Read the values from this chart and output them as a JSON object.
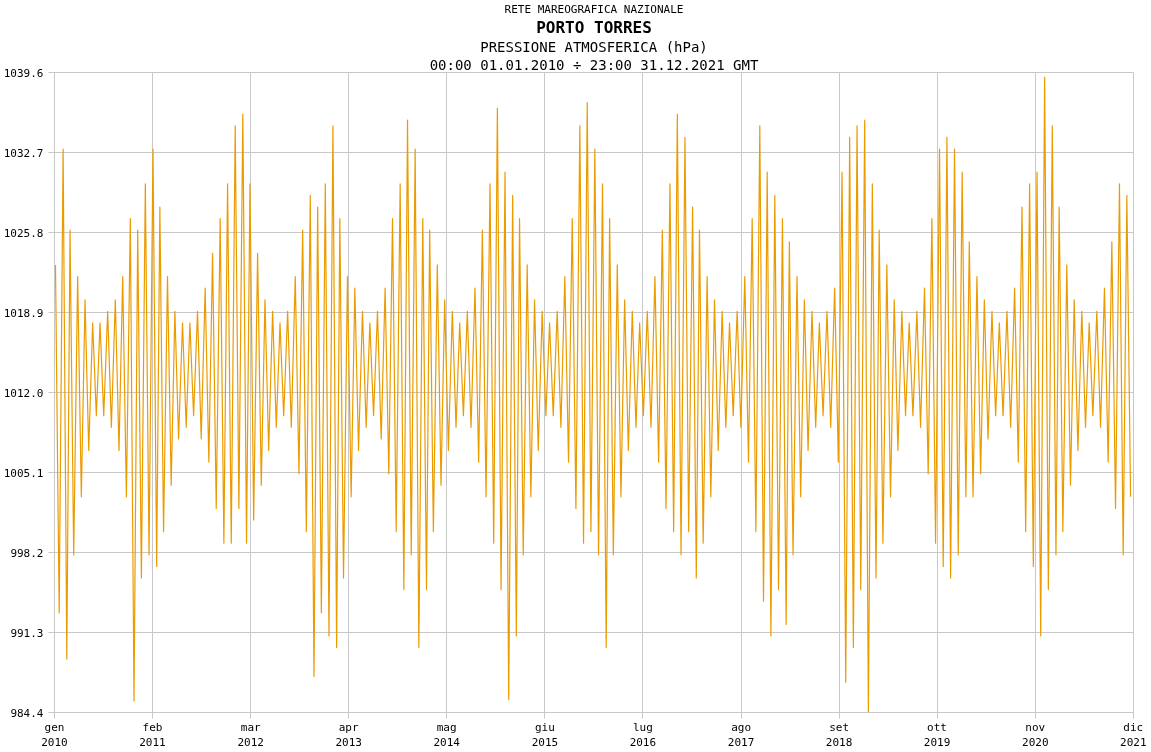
{
  "chart_data": {
    "type": "line",
    "title": "PORTO TORRES",
    "subtitle": "PRESSIONE ATMOSFERICA (hPa)",
    "annotations": [
      "RETE MAREOGRAFICA NAZIONALE",
      "00:00 01.01.2010 ÷ 23:00 31.12.2021 GMT"
    ],
    "xlim": [
      "2010-01-01",
      "2021-12-31T23:00"
    ],
    "xticks": [
      {
        "value": "2010-01-01",
        "label": "gen\n2010"
      },
      {
        "value": "2011-02-03",
        "label": "feb\n2011"
      },
      {
        "value": "2012-03-08",
        "label": "mar\n2012"
      },
      {
        "value": "2013-04-10",
        "label": "apr\n2013"
      },
      {
        "value": "2014-05-13",
        "label": "mag\n2014"
      },
      {
        "value": "2015-06-16",
        "label": "giu\n2015"
      },
      {
        "value": "2016-07-18",
        "label": "lug\n2016"
      },
      {
        "value": "2017-08-21",
        "label": "ago\n2017"
      },
      {
        "value": "2018-09-23",
        "label": "set\n2018"
      },
      {
        "value": "2019-10-26",
        "label": "ott\n2019"
      },
      {
        "value": "2020-11-28",
        "label": "nov\n2020"
      },
      {
        "value": "2021-12-31",
        "label": "dic\n2021"
      }
    ],
    "ylim": [
      984.4,
      1039.6
    ],
    "yticks": [
      984.4,
      991.3,
      998.2,
      1005.1,
      {
        "value": 1012,
        "label": "1012.0"
      },
      1018.9,
      1025.8,
      1032.7,
      1039.6
    ],
    "grid": true,
    "marker": "none",
    "line_style": "solid",
    "series": [
      {
        "color": "#eb9b00",
        "x": [
          "2010-01-05",
          "2010-01-20",
          "2010-02-05",
          "2010-02-20",
          "2010-03-05",
          "2010-03-20",
          "2010-04-05",
          "2010-04-20",
          "2010-05-05",
          "2010-05-20",
          "2010-06-05",
          "2010-06-20",
          "2010-07-05",
          "2010-07-20",
          "2010-08-05",
          "2010-08-20",
          "2010-09-05",
          "2010-09-20",
          "2010-10-05",
          "2010-10-20",
          "2010-11-05",
          "2010-11-20",
          "2010-12-05",
          "2010-12-20",
          "2011-01-05",
          "2011-01-20",
          "2011-02-05",
          "2011-02-20",
          "2011-03-05",
          "2011-03-20",
          "2011-04-05",
          "2011-04-20",
          "2011-05-05",
          "2011-05-20",
          "2011-06-05",
          "2011-06-20",
          "2011-07-05",
          "2011-07-20",
          "2011-08-05",
          "2011-08-20",
          "2011-09-05",
          "2011-09-20",
          "2011-10-05",
          "2011-10-20",
          "2011-11-05",
          "2011-11-20",
          "2011-12-05",
          "2011-12-20",
          "2012-01-05",
          "2012-01-20",
          "2012-02-05",
          "2012-02-20",
          "2012-03-05",
          "2012-03-20",
          "2012-04-05",
          "2012-04-20",
          "2012-05-05",
          "2012-05-20",
          "2012-06-05",
          "2012-06-20",
          "2012-07-05",
          "2012-07-20",
          "2012-08-05",
          "2012-08-20",
          "2012-09-05",
          "2012-09-20",
          "2012-10-05",
          "2012-10-20",
          "2012-11-05",
          "2012-11-20",
          "2012-12-05",
          "2012-12-20",
          "2013-01-05",
          "2013-01-20",
          "2013-02-05",
          "2013-02-20",
          "2013-03-05",
          "2013-03-20",
          "2013-04-05",
          "2013-04-20",
          "2013-05-05",
          "2013-05-20",
          "2013-06-05",
          "2013-06-20",
          "2013-07-05",
          "2013-07-20",
          "2013-08-05",
          "2013-08-20",
          "2013-09-05",
          "2013-09-20",
          "2013-10-05",
          "2013-10-20",
          "2013-11-05",
          "2013-11-20",
          "2013-12-05",
          "2013-12-20",
          "2014-01-05",
          "2014-01-20",
          "2014-02-05",
          "2014-02-20",
          "2014-03-05",
          "2014-03-20",
          "2014-04-05",
          "2014-04-20",
          "2014-05-05",
          "2014-05-20",
          "2014-06-05",
          "2014-06-20",
          "2014-07-05",
          "2014-07-20",
          "2014-08-05",
          "2014-08-20",
          "2014-09-05",
          "2014-09-20",
          "2014-10-05",
          "2014-10-20",
          "2014-11-05",
          "2014-11-20",
          "2014-12-05",
          "2014-12-20",
          "2015-01-05",
          "2015-01-20",
          "2015-02-05",
          "2015-02-20",
          "2015-03-05",
          "2015-03-20",
          "2015-04-05",
          "2015-04-20",
          "2015-05-05",
          "2015-05-20",
          "2015-06-05",
          "2015-06-20",
          "2015-07-05",
          "2015-07-20",
          "2015-08-05",
          "2015-08-20",
          "2015-09-05",
          "2015-09-20",
          "2015-10-05",
          "2015-10-20",
          "2015-11-05",
          "2015-11-20",
          "2015-12-05",
          "2015-12-20",
          "2016-01-05",
          "2016-01-20",
          "2016-02-05",
          "2016-02-20",
          "2016-03-05",
          "2016-03-20",
          "2016-04-05",
          "2016-04-20",
          "2016-05-05",
          "2016-05-20",
          "2016-06-05",
          "2016-06-20",
          "2016-07-05",
          "2016-07-20",
          "2016-08-05",
          "2016-08-20",
          "2016-09-05",
          "2016-09-20",
          "2016-10-05",
          "2016-10-20",
          "2016-11-05",
          "2016-11-20",
          "2016-12-05",
          "2016-12-20",
          "2017-01-05",
          "2017-01-20",
          "2017-02-05",
          "2017-02-20",
          "2017-03-05",
          "2017-03-20",
          "2017-04-05",
          "2017-04-20",
          "2017-05-05",
          "2017-05-20",
          "2017-06-05",
          "2017-06-20",
          "2017-07-05",
          "2017-07-20",
          "2017-08-05",
          "2017-08-20",
          "2017-09-05",
          "2017-09-20",
          "2017-10-05",
          "2017-10-20",
          "2017-11-05",
          "2017-11-20",
          "2017-12-05",
          "2017-12-20",
          "2018-01-05",
          "2018-01-20",
          "2018-02-05",
          "2018-02-20",
          "2018-03-05",
          "2018-03-20",
          "2018-04-05",
          "2018-04-20",
          "2018-05-05",
          "2018-05-20",
          "2018-06-05",
          "2018-06-20",
          "2018-07-05",
          "2018-07-20",
          "2018-08-05",
          "2018-08-20",
          "2018-09-05",
          "2018-09-20",
          "2018-10-05",
          "2018-10-20",
          "2018-11-05",
          "2018-11-20",
          "2018-12-05",
          "2018-12-20",
          "2019-01-05",
          "2019-01-20",
          "2019-02-05",
          "2019-02-20",
          "2019-03-05",
          "2019-03-20",
          "2019-04-05",
          "2019-04-20",
          "2019-05-05",
          "2019-05-20",
          "2019-06-05",
          "2019-06-20",
          "2019-07-05",
          "2019-07-20",
          "2019-08-05",
          "2019-08-20",
          "2019-09-05",
          "2019-09-20",
          "2019-10-05",
          "2019-10-20",
          "2019-11-05",
          "2019-11-20",
          "2019-12-05",
          "2019-12-20",
          "2020-01-05",
          "2020-01-20",
          "2020-02-05",
          "2020-02-20",
          "2020-03-05",
          "2020-03-20",
          "2020-04-05",
          "2020-04-20",
          "2020-05-05",
          "2020-05-20",
          "2020-06-05",
          "2020-06-20",
          "2020-07-05",
          "2020-07-20",
          "2020-08-05",
          "2020-08-20",
          "2020-09-05",
          "2020-09-20",
          "2020-10-05",
          "2020-10-20",
          "2020-11-05",
          "2020-11-20",
          "2020-12-05",
          "2020-12-20",
          "2021-01-05",
          "2021-01-20",
          "2021-02-05",
          "2021-02-20",
          "2021-03-05",
          "2021-03-20",
          "2021-04-05",
          "2021-04-20",
          "2021-05-05",
          "2021-05-20",
          "2021-06-05",
          "2021-06-20",
          "2021-07-05",
          "2021-07-20",
          "2021-08-05",
          "2021-08-20",
          "2021-09-05",
          "2021-09-20",
          "2021-10-05",
          "2021-10-20",
          "2021-11-05",
          "2021-11-20",
          "2021-12-05",
          "2021-12-20"
        ],
        "values": [
          1023,
          993,
          1033,
          989,
          1026,
          998,
          1022,
          1003,
          1020,
          1007,
          1018,
          1010,
          1018,
          1010,
          1019,
          1009,
          1020,
          1007,
          1022,
          1003,
          1027,
          985.4,
          1026,
          996,
          1030,
          998,
          1033,
          997,
          1028,
          1000,
          1022,
          1004,
          1019,
          1008,
          1018,
          1009,
          1018,
          1010,
          1019,
          1008,
          1021,
          1006,
          1024,
          1002,
          1027,
          999,
          1030,
          999,
          1035,
          1002,
          1036,
          999,
          1030,
          1001,
          1024,
          1004,
          1020,
          1007,
          1019,
          1009,
          1018,
          1010,
          1019,
          1009,
          1022,
          1005,
          1026,
          1000,
          1029,
          987.5,
          1028,
          993,
          1030,
          991,
          1035,
          990,
          1027,
          996,
          1022,
          1003,
          1021,
          1007,
          1019,
          1009,
          1018,
          1010,
          1019,
          1008,
          1021,
          1005,
          1027,
          1000,
          1030,
          995,
          1035.5,
          998,
          1033,
          990,
          1027,
          995,
          1026,
          1000,
          1023,
          1004,
          1020,
          1007,
          1019,
          1009,
          1018,
          1010,
          1019,
          1009,
          1021,
          1006,
          1026,
          1003,
          1030,
          999,
          1036.5,
          995,
          1031,
          985.5,
          1029,
          991,
          1027,
          998,
          1023,
          1003,
          1020,
          1007,
          1019,
          1010,
          1018,
          1010,
          1019,
          1009,
          1022,
          1006,
          1027,
          1002,
          1035,
          999,
          1037,
          1000,
          1033,
          998,
          1030,
          990,
          1027,
          998,
          1023,
          1003,
          1020,
          1007,
          1019,
          1009,
          1018,
          1010,
          1019,
          1009,
          1022,
          1006,
          1026,
          1002,
          1030,
          1000,
          1036,
          998,
          1034,
          1000,
          1028,
          996,
          1026,
          999,
          1022,
          1003,
          1020,
          1007,
          1019,
          1009,
          1018,
          1010,
          1019,
          1009,
          1022,
          1006,
          1027,
          1000,
          1035,
          994,
          1031,
          991,
          1029,
          995,
          1027,
          992,
          1025,
          998,
          1022,
          1003,
          1020,
          1007,
          1019,
          1009,
          1018,
          1010,
          1019,
          1009,
          1021,
          1006,
          1031,
          987,
          1034,
          990,
          1035,
          995,
          1035.5,
          984.4,
          1030,
          996,
          1026,
          999,
          1023,
          1003,
          1020,
          1007,
          1019,
          1010,
          1018,
          1010,
          1019,
          1009,
          1021,
          1005,
          1027,
          999,
          1033,
          997,
          1034,
          996,
          1033,
          998,
          1031,
          1003,
          1025,
          1003,
          1022,
          1005,
          1020,
          1008,
          1019,
          1010,
          1018,
          1010,
          1019,
          1009,
          1021,
          1006,
          1028,
          1000,
          1030,
          997,
          1031,
          991,
          1039.2,
          995,
          1035,
          998,
          1028,
          1000,
          1023,
          1004,
          1020,
          1007,
          1019,
          1009,
          1018,
          1010,
          1019,
          1009,
          1021,
          1006,
          1025,
          1002,
          1030,
          998,
          1029,
          1003
        ]
      }
    ]
  }
}
